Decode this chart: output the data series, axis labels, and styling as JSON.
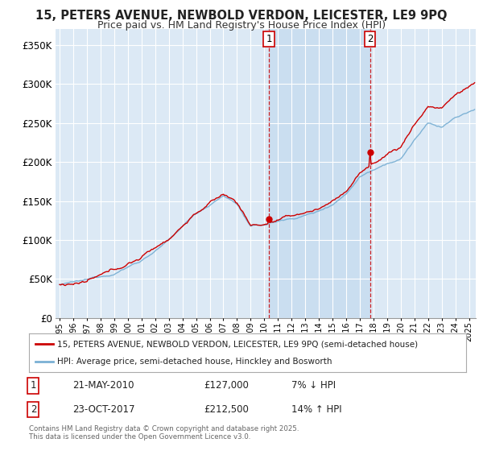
{
  "title": "15, PETERS AVENUE, NEWBOLD VERDON, LEICESTER, LE9 9PQ",
  "subtitle": "Price paid vs. HM Land Registry's House Price Index (HPI)",
  "background_color": "#ffffff",
  "plot_bg_color": "#dce9f5",
  "shade_color": "#c8ddf0",
  "grid_color": "#ffffff",
  "red_line_color": "#cc0000",
  "blue_line_color": "#7ab0d4",
  "sale1_date": "21-MAY-2010",
  "sale1_price": "£127,000",
  "sale1_hpi": "7% ↓ HPI",
  "sale2_date": "23-OCT-2017",
  "sale2_price": "£212,500",
  "sale2_hpi": "14% ↑ HPI",
  "legend_red": "15, PETERS AVENUE, NEWBOLD VERDON, LEICESTER, LE9 9PQ (semi-detached house)",
  "legend_blue": "HPI: Average price, semi-detached house, Hinckley and Bosworth",
  "footer": "Contains HM Land Registry data © Crown copyright and database right 2025.\nThis data is licensed under the Open Government Licence v3.0.",
  "ylim": [
    0,
    370000
  ],
  "yticks": [
    0,
    50000,
    100000,
    150000,
    200000,
    250000,
    300000,
    350000
  ],
  "ytick_labels": [
    "£0",
    "£50K",
    "£100K",
    "£150K",
    "£200K",
    "£250K",
    "£300K",
    "£350K"
  ],
  "start_year": 1995,
  "end_year": 2025
}
